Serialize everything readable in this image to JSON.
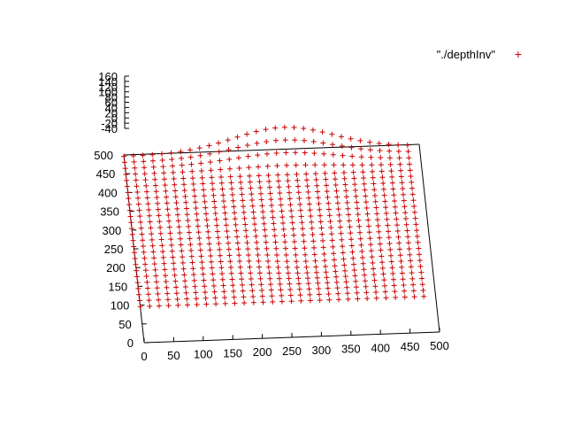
{
  "chart_data": {
    "type": "scatter",
    "title": "",
    "legend": {
      "label": "\"./depthInv\"",
      "placement": "top-right",
      "marker": "+"
    },
    "x_axis": {
      "label": "",
      "ticks": [
        "0",
        "50",
        "100",
        "150",
        "200",
        "250",
        "300",
        "350",
        "400",
        "450",
        "500"
      ],
      "range": [
        0,
        500
      ]
    },
    "y_axis": {
      "label": "",
      "ticks": [
        "0",
        "50",
        "100",
        "150",
        "200",
        "250",
        "300",
        "350",
        "400",
        "450",
        "500"
      ],
      "range": [
        0,
        500
      ]
    },
    "z_axis": {
      "label": "",
      "ticks": [
        "-40",
        "-20",
        "0",
        "20",
        "40",
        "60",
        "80",
        "100",
        "120",
        "140",
        "160"
      ],
      "range": [
        -40,
        160
      ]
    },
    "grid": false,
    "series": [
      {
        "color": "#cc0000",
        "marker": "+",
        "grid_x": {
          "start": 0,
          "step": 16,
          "count": 31
        },
        "grid_y": {
          "start": 96,
          "step": 16,
          "count": 26
        },
        "z_description": "depth surface, mostly 0, with a raised ridge (up to ~120) along the far edge near x 150-400"
      }
    ]
  }
}
